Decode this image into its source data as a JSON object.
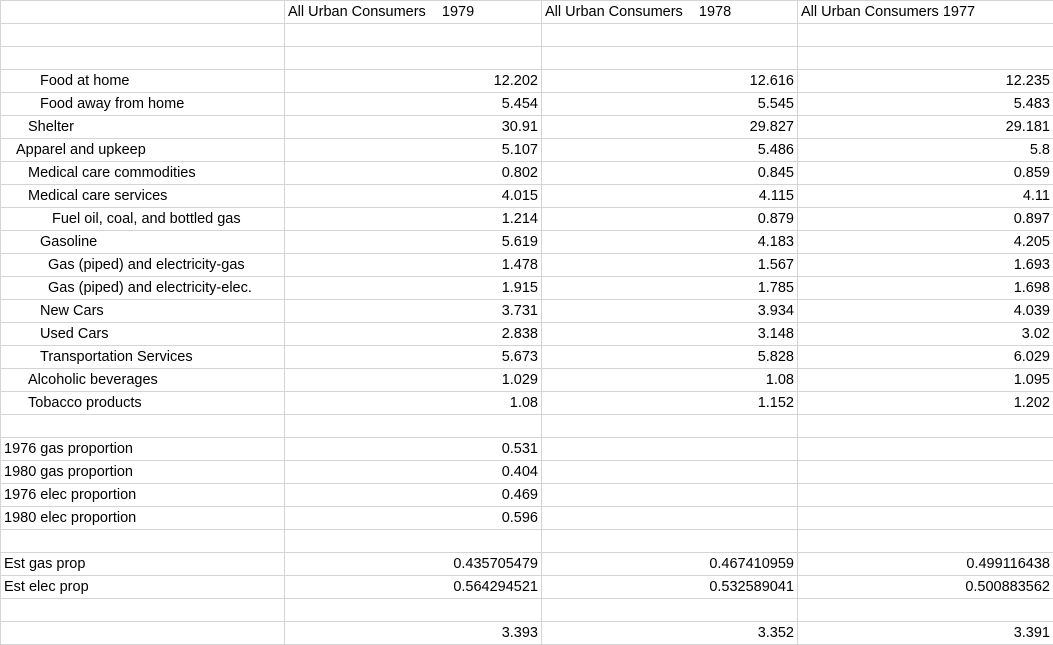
{
  "columns": [
    "All Urban Consumers    1979",
    "All Urban Consumers    1978",
    "All Urban Consumers 1977"
  ],
  "rows": [
    {
      "label": "",
      "indent": 0,
      "values": [
        "",
        "",
        ""
      ]
    },
    {
      "label": "",
      "indent": 0,
      "values": [
        "",
        "",
        ""
      ]
    },
    {
      "label": "Food at home",
      "indent": 36,
      "values": [
        "12.202",
        "12.616",
        "12.235"
      ]
    },
    {
      "label": "Food away from home",
      "indent": 36,
      "values": [
        "5.454",
        "5.545",
        "5.483"
      ]
    },
    {
      "label": "Shelter",
      "indent": 24,
      "values": [
        "30.91",
        "29.827",
        "29.181"
      ]
    },
    {
      "label": "Apparel and upkeep",
      "indent": 12,
      "values": [
        "5.107",
        "5.486",
        "5.8"
      ]
    },
    {
      "label": "Medical care commodities",
      "indent": 24,
      "values": [
        "0.802",
        "0.845",
        "0.859"
      ]
    },
    {
      "label": "Medical care services",
      "indent": 24,
      "values": [
        "4.015",
        "4.115",
        "4.11"
      ]
    },
    {
      "label": "Fuel oil, coal, and bottled gas",
      "indent": 48,
      "values": [
        "1.214",
        "0.879",
        "0.897"
      ]
    },
    {
      "label": "Gasoline",
      "indent": 36,
      "values": [
        "5.619",
        "4.183",
        "4.205"
      ]
    },
    {
      "label": "Gas (piped) and electricity-gas",
      "indent": 44,
      "values": [
        "1.478",
        "1.567",
        "1.693"
      ]
    },
    {
      "label": "Gas (piped) and electricity-elec.",
      "indent": 44,
      "values": [
        "1.915",
        "1.785",
        "1.698"
      ]
    },
    {
      "label": "New Cars",
      "indent": 36,
      "values": [
        "3.731",
        "3.934",
        "4.039"
      ]
    },
    {
      "label": "Used Cars",
      "indent": 36,
      "values": [
        "2.838",
        "3.148",
        "3.02"
      ]
    },
    {
      "label": "Transportation Services",
      "indent": 36,
      "values": [
        "5.673",
        "5.828",
        "6.029"
      ]
    },
    {
      "label": "Alcoholic beverages",
      "indent": 24,
      "values": [
        "1.029",
        "1.08",
        "1.095"
      ]
    },
    {
      "label": "Tobacco products",
      "indent": 24,
      "values": [
        "1.08",
        "1.152",
        "1.202"
      ]
    },
    {
      "label": "",
      "indent": 0,
      "values": [
        "",
        "",
        ""
      ]
    },
    {
      "label": "1976 gas proportion",
      "indent": 0,
      "values": [
        "0.531",
        "",
        ""
      ]
    },
    {
      "label": "1980 gas proportion",
      "indent": 0,
      "values": [
        "0.404",
        "",
        ""
      ]
    },
    {
      "label": "1976 elec proportion",
      "indent": 0,
      "values": [
        "0.469",
        "",
        ""
      ]
    },
    {
      "label": "1980 elec proportion",
      "indent": 0,
      "values": [
        "0.596",
        "",
        ""
      ]
    },
    {
      "label": "",
      "indent": 0,
      "values": [
        "",
        "",
        ""
      ]
    },
    {
      "label": "Est gas prop",
      "indent": 0,
      "values": [
        "0.435705479",
        "0.467410959",
        "0.499116438"
      ]
    },
    {
      "label": "Est elec prop",
      "indent": 0,
      "values": [
        "0.564294521",
        "0.532589041",
        "0.500883562"
      ]
    },
    {
      "label": "",
      "indent": 0,
      "values": [
        "",
        "",
        ""
      ]
    },
    {
      "label": "",
      "indent": 0,
      "values": [
        "3.393",
        "3.352",
        "3.391"
      ]
    }
  ]
}
